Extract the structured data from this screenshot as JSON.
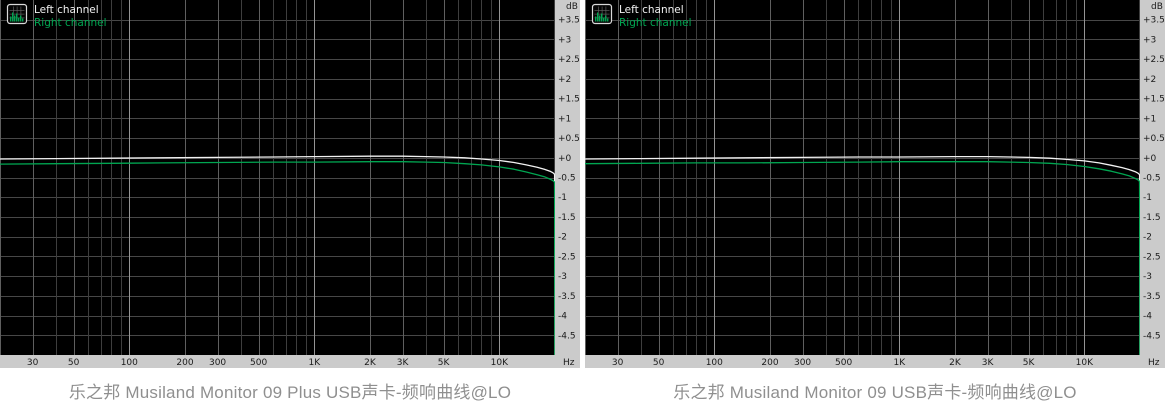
{
  "page": {
    "background": "#ffffff"
  },
  "colors": {
    "plot_bg": "#000000",
    "axis_strip": "#cbcbcb",
    "axis_text": "#1b1b1b",
    "grid_minor": "#3e3e3e",
    "grid_labeled": "#5f5f5f",
    "grid_decade": "#949494",
    "grid_horizontal": "#474747",
    "left_channel": "#f2f2f2",
    "right_channel": "#00a651",
    "caption_text": "#8f8f8f"
  },
  "legend": {
    "icon": "spectrum-analyzer-icon",
    "items": [
      {
        "label": "Left channel",
        "color": "#f2f2f2"
      },
      {
        "label": "Right channel",
        "color": "#00a651"
      }
    ]
  },
  "axes": {
    "y_unit": "dB",
    "x_unit": "Hz",
    "y_tick_labels": [
      "+3.5",
      "+3",
      "+2.5",
      "+2",
      "+1.5",
      "+1",
      "+0.5",
      "+0",
      "-0.5",
      "-1",
      "-1.5",
      "-2",
      "-2.5",
      "-3",
      "-3.5",
      "-4",
      "-4.5"
    ],
    "x_tick_labels": [
      "30",
      "50",
      "100",
      "200",
      "300",
      "500",
      "1K",
      "2K",
      "3K",
      "5K",
      "10K"
    ]
  },
  "captions": {
    "left": "乐之邦 Musiland Monitor 09 Plus USB声卡-频响曲线@LO",
    "right": "乐之邦 Musiland Monitor 09 USB声卡-频响曲线@LO"
  },
  "chart_data": [
    {
      "type": "line",
      "title": "乐之邦 Musiland Monitor 09 Plus USB声卡-频响曲线@LO",
      "xlabel": "Hz",
      "ylabel": "dB",
      "x_scale": "log",
      "xlim": [
        20,
        20000
      ],
      "ylim": [
        -5,
        4
      ],
      "grid": true,
      "legend_position": "top-left",
      "y_grid_step": 0.5,
      "y_ticks": [
        3.5,
        3,
        2.5,
        2,
        1.5,
        1,
        0.5,
        0,
        -0.5,
        -1,
        -1.5,
        -2,
        -2.5,
        -3,
        -3.5,
        -4,
        -4.5
      ],
      "x_ticks_labeled": [
        30,
        50,
        100,
        200,
        300,
        500,
        1000,
        2000,
        3000,
        5000,
        10000
      ],
      "series": [
        {
          "name": "Left channel",
          "color": "#f2f2f2",
          "points": [
            [
              20,
              -0.03
            ],
            [
              40,
              -0.02
            ],
            [
              80,
              -0.01
            ],
            [
              150,
              0
            ],
            [
              300,
              0.01
            ],
            [
              600,
              0.02
            ],
            [
              1000,
              0.03
            ],
            [
              2000,
              0.04
            ],
            [
              3000,
              0.04
            ],
            [
              4000,
              0.03
            ],
            [
              5000,
              0.02
            ],
            [
              6500,
              0
            ],
            [
              8000,
              -0.03
            ],
            [
              10000,
              -0.07
            ],
            [
              12000,
              -0.12
            ],
            [
              14000,
              -0.18
            ],
            [
              16000,
              -0.24
            ],
            [
              17500,
              -0.29
            ],
            [
              18800,
              -0.34
            ],
            [
              19500,
              -0.38
            ],
            [
              19900,
              -0.42
            ],
            [
              20000,
              -5.6
            ]
          ]
        },
        {
          "name": "Right channel",
          "color": "#00a651",
          "points": [
            [
              20,
              -0.16
            ],
            [
              40,
              -0.15
            ],
            [
              80,
              -0.14
            ],
            [
              150,
              -0.13
            ],
            [
              300,
              -0.12
            ],
            [
              600,
              -0.11
            ],
            [
              1000,
              -0.11
            ],
            [
              2000,
              -0.1
            ],
            [
              3000,
              -0.1
            ],
            [
              4000,
              -0.11
            ],
            [
              5000,
              -0.12
            ],
            [
              6500,
              -0.15
            ],
            [
              8000,
              -0.18
            ],
            [
              10000,
              -0.23
            ],
            [
              12000,
              -0.29
            ],
            [
              14000,
              -0.36
            ],
            [
              16000,
              -0.43
            ],
            [
              17500,
              -0.48
            ],
            [
              18800,
              -0.54
            ],
            [
              19500,
              -0.58
            ],
            [
              19900,
              -0.62
            ],
            [
              20000,
              -5.6
            ]
          ]
        }
      ]
    },
    {
      "type": "line",
      "title": "乐之邦 Musiland Monitor 09 USB声卡-频响曲线@LO",
      "xlabel": "Hz",
      "ylabel": "dB",
      "x_scale": "log",
      "xlim": [
        20,
        20000
      ],
      "ylim": [
        -5,
        4
      ],
      "grid": true,
      "legend_position": "top-left",
      "y_grid_step": 0.5,
      "y_ticks": [
        3.5,
        3,
        2.5,
        2,
        1.5,
        1,
        0.5,
        0,
        -0.5,
        -1,
        -1.5,
        -2,
        -2.5,
        -3,
        -3.5,
        -4,
        -4.5
      ],
      "x_ticks_labeled": [
        30,
        50,
        100,
        200,
        300,
        500,
        1000,
        2000,
        3000,
        5000,
        10000
      ],
      "series": [
        {
          "name": "Left channel",
          "color": "#f2f2f2",
          "points": [
            [
              20,
              -0.03
            ],
            [
              40,
              -0.02
            ],
            [
              80,
              -0.01
            ],
            [
              150,
              0
            ],
            [
              300,
              0.01
            ],
            [
              600,
              0.02
            ],
            [
              1000,
              0.02
            ],
            [
              2000,
              0.03
            ],
            [
              3000,
              0.03
            ],
            [
              4000,
              0.02
            ],
            [
              5000,
              0.01
            ],
            [
              6500,
              -0.01
            ],
            [
              8000,
              -0.04
            ],
            [
              10000,
              -0.08
            ],
            [
              12000,
              -0.13
            ],
            [
              14000,
              -0.19
            ],
            [
              16000,
              -0.25
            ],
            [
              17500,
              -0.3
            ],
            [
              18800,
              -0.35
            ],
            [
              19500,
              -0.39
            ],
            [
              19900,
              -0.43
            ],
            [
              20000,
              -5.6
            ]
          ]
        },
        {
          "name": "Right channel",
          "color": "#00a651",
          "points": [
            [
              20,
              -0.15
            ],
            [
              40,
              -0.14
            ],
            [
              80,
              -0.13
            ],
            [
              150,
              -0.13
            ],
            [
              300,
              -0.12
            ],
            [
              600,
              -0.11
            ],
            [
              1000,
              -0.1
            ],
            [
              2000,
              -0.1
            ],
            [
              3000,
              -0.1
            ],
            [
              4000,
              -0.11
            ],
            [
              5000,
              -0.12
            ],
            [
              6500,
              -0.14
            ],
            [
              8000,
              -0.17
            ],
            [
              10000,
              -0.22
            ],
            [
              12000,
              -0.28
            ],
            [
              14000,
              -0.34
            ],
            [
              16000,
              -0.41
            ],
            [
              17500,
              -0.46
            ],
            [
              18800,
              -0.52
            ],
            [
              19500,
              -0.56
            ],
            [
              19900,
              -0.6
            ],
            [
              20000,
              -5.6
            ]
          ]
        }
      ]
    }
  ]
}
